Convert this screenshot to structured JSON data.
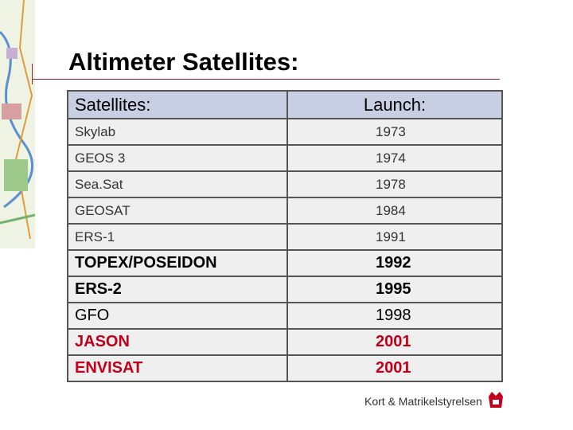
{
  "header": {
    "title": "Altimeter Satellites:"
  },
  "table": {
    "columns": [
      "Satellites:",
      "Launch:"
    ],
    "rows": [
      [
        "Skylab",
        1973
      ],
      [
        "GEOS 3",
        1974
      ],
      [
        "Sea.Sat",
        1978
      ],
      [
        "GEOSAT",
        1984
      ],
      [
        "ERS-1",
        1991
      ],
      [
        "TOPEX/POSEIDON",
        1992
      ],
      [
        "ERS-2",
        1995
      ],
      [
        "GFO",
        1998
      ],
      [
        "JASON",
        2001
      ],
      [
        "ENVISAT",
        2001
      ]
    ]
  },
  "footer": {
    "logo": "Kort & Matrikelstyrelsen"
  }
}
